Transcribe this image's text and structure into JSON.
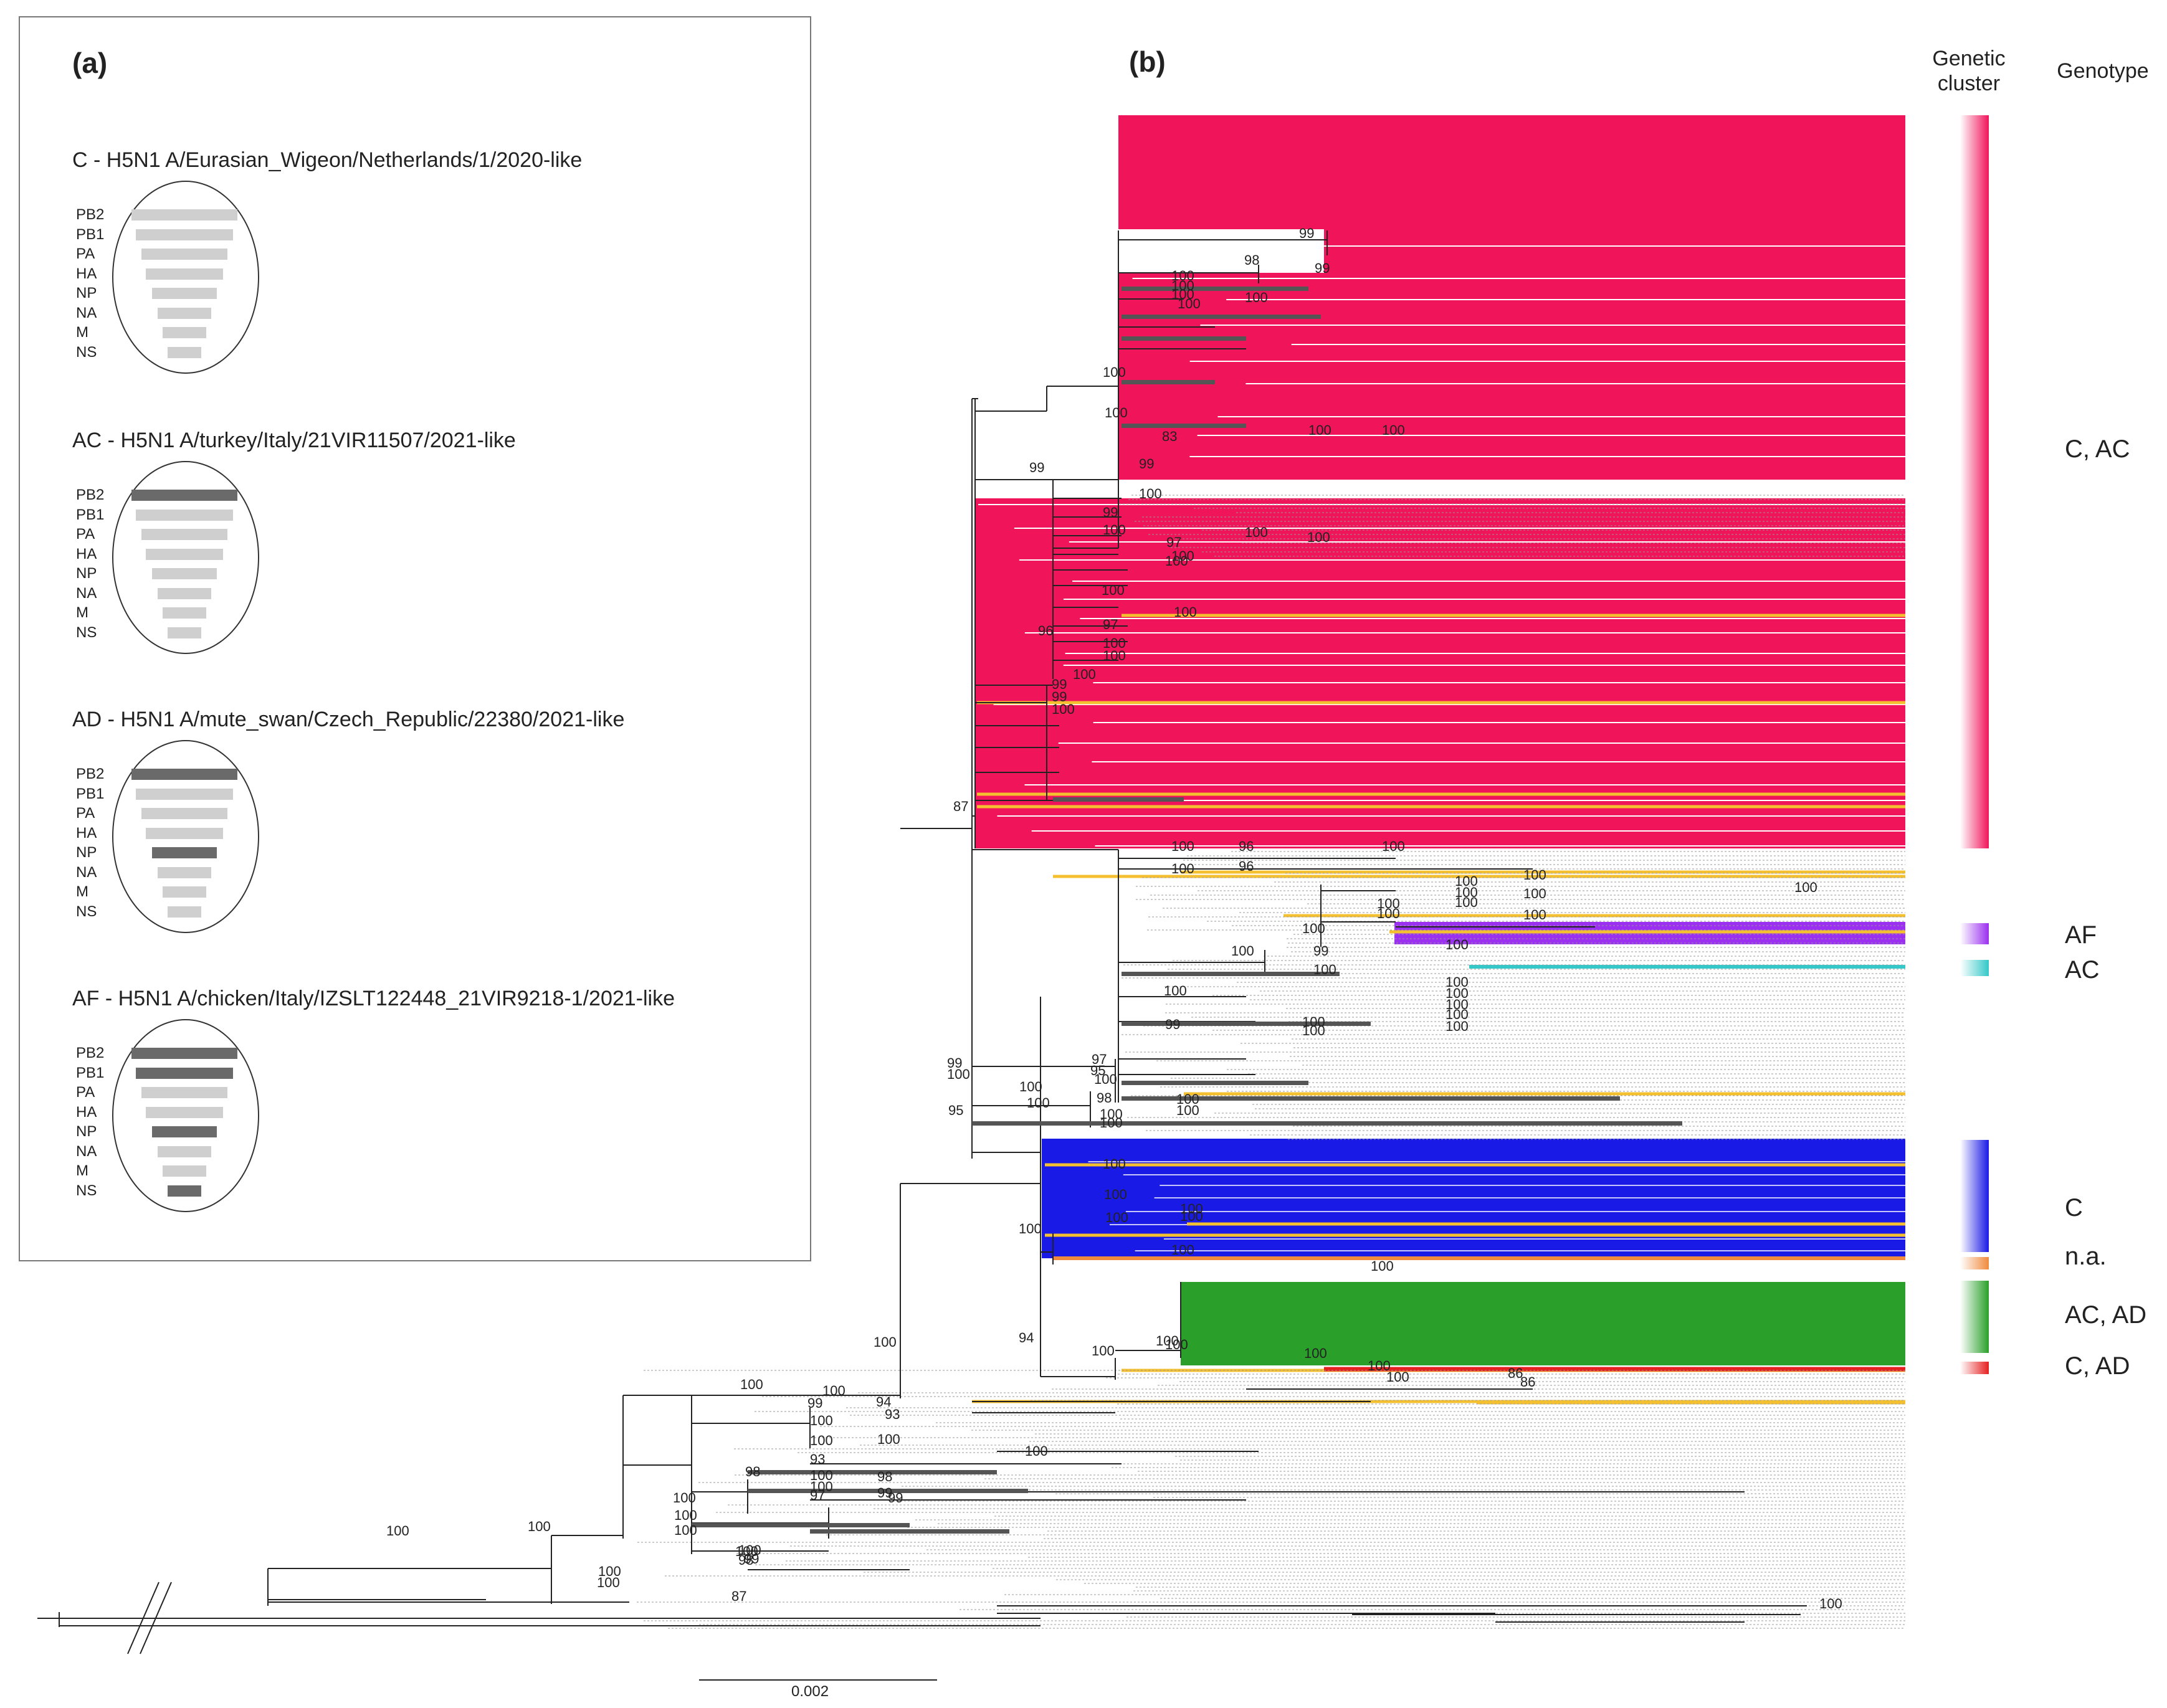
{
  "panel_a": {
    "label": "(a)",
    "genotypes": [
      {
        "title": "C - H5N1 A/Eurasian_Wigeon/Netherlands/1/2020-like",
        "dark": []
      },
      {
        "title": "AC - H5N1 A/turkey/Italy/21VIR11507/2021-like",
        "dark": [
          "PB2"
        ]
      },
      {
        "title": "AD - H5N1 A/mute_swan/Czech_Republic/22380/2021-like",
        "dark": [
          "PB2",
          "NP"
        ]
      },
      {
        "title": "AF - H5N1 A/chicken/Italy/IZSLT122448_21VIR9218-1/2021-like",
        "dark": [
          "PB2",
          "PB1",
          "NP",
          "NS"
        ]
      }
    ],
    "segments": [
      "PB2",
      "PB1",
      "PA",
      "HA",
      "NP",
      "NA",
      "M",
      "NS"
    ],
    "colors": {
      "light": "#cfcfcf",
      "dark": "#6a6a6a"
    }
  },
  "panel_b": {
    "label": "(b)",
    "header_cluster": "Genetic cluster",
    "header_genotype": "Genotype",
    "scale_label": "0.002",
    "clusters": [
      {
        "genotype": "C, AC",
        "color": "#f0145a"
      },
      {
        "genotype": "AF",
        "color": "#9b30f0"
      },
      {
        "genotype": "AC",
        "color": "#35c8c8"
      },
      {
        "genotype": "C",
        "color": "#1a1ae6"
      },
      {
        "genotype": "n.a.",
        "color": "#f08a3c"
      },
      {
        "genotype": "AC, AD",
        "color": "#2aa02a"
      },
      {
        "genotype": "C, AD",
        "color": "#e62020"
      }
    ],
    "highlight_color": "#f5c030",
    "bootstrap": [
      "99",
      "98",
      "99",
      "100",
      "100",
      "100",
      "100",
      "100",
      "100",
      "100",
      "83",
      "100",
      "100",
      "99",
      "99",
      "100",
      "99",
      "100",
      "97",
      "100",
      "100",
      "100",
      "100",
      "100",
      "96",
      "97",
      "100",
      "100",
      "100",
      "100",
      "99",
      "99",
      "100",
      "87",
      "100",
      "96",
      "100",
      "100",
      "96",
      "100",
      "100",
      "100",
      "100",
      "100",
      "100",
      "100",
      "100",
      "100",
      "100",
      "100",
      "100",
      "99",
      "100",
      "100",
      "100",
      "100",
      "100",
      "100",
      "100",
      "100",
      "99",
      "100",
      "97",
      "95",
      "100",
      "99",
      "100",
      "100",
      "98",
      "100",
      "100",
      "100",
      "95",
      "100",
      "100",
      "100",
      "100",
      "100",
      "100",
      "100",
      "100",
      "100",
      "100",
      "94",
      "100",
      "100",
      "100",
      "100",
      "100",
      "100",
      "86",
      "86",
      "100",
      "100",
      "100",
      "99",
      "94",
      "93",
      "100",
      "100",
      "100",
      "93",
      "100",
      "100",
      "100",
      "98",
      "99",
      "98",
      "97",
      "99",
      "100",
      "100",
      "100",
      "100",
      "100",
      "100",
      "98",
      "100",
      "100",
      "100",
      "99",
      "87",
      "100"
    ]
  }
}
